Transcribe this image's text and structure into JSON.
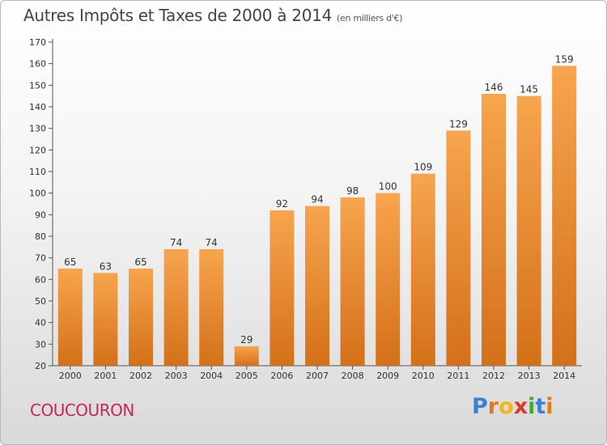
{
  "chart_data": {
    "type": "bar",
    "title": "Autres Impôts et Taxes de 2000 à 2014",
    "unit_label": "(en milliers d'€)",
    "xlabel": "",
    "ylabel": "",
    "categories": [
      "2000",
      "2001",
      "2002",
      "2003",
      "2004",
      "2005",
      "2006",
      "2007",
      "2008",
      "2009",
      "2010",
      "2011",
      "2012",
      "2013",
      "2014"
    ],
    "values": [
      65,
      63,
      65,
      74,
      74,
      29,
      92,
      94,
      98,
      100,
      109,
      129,
      146,
      145,
      159
    ],
    "ylim": [
      20,
      170
    ],
    "yticks": [
      20,
      30,
      40,
      50,
      60,
      70,
      80,
      90,
      100,
      110,
      120,
      130,
      140,
      150,
      160,
      170
    ],
    "grid": false,
    "legend": "none",
    "bar_color_top": "#f7a54e",
    "bar_color_bottom": "#d4701a"
  },
  "commune": "COUCOURON",
  "logo": {
    "letters": [
      "P",
      "r",
      "o",
      "x",
      "i",
      "t",
      "i"
    ],
    "colors": [
      "#3d7fd6",
      "#e07b18",
      "#f2b619",
      "#d93a2b",
      "#4aa52f",
      "#3d7fd6",
      "#e07b18"
    ]
  }
}
